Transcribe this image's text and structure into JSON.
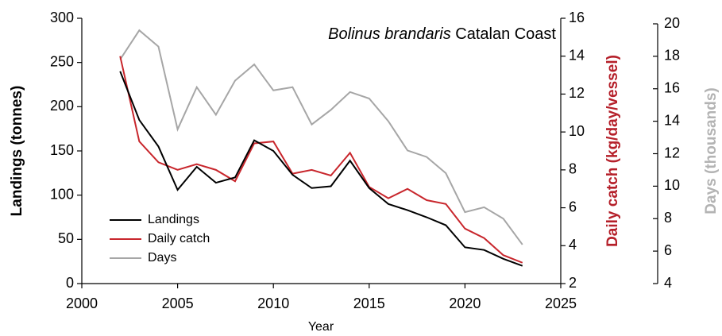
{
  "chart_data": {
    "type": "line",
    "title": {
      "species": "Bolinus brandaris",
      "region": "Catalan Coast"
    },
    "x_label": "Year",
    "y_label": "Landings (tonnes)",
    "y2_label": "Daily catch (kg/day/vessel)",
    "y3_label": "Days (thousands)",
    "x": [
      2002,
      2003,
      2004,
      2005,
      2006,
      2007,
      2008,
      2009,
      2010,
      2011,
      2012,
      2013,
      2014,
      2015,
      2016,
      2017,
      2018,
      2019,
      2020,
      2021,
      2022,
      2023
    ],
    "xlim": [
      2000,
      2025
    ],
    "xticks": [
      2000,
      2005,
      2010,
      2015,
      2020,
      2025
    ],
    "ylim": [
      0,
      300
    ],
    "yticks": [
      0,
      50,
      100,
      150,
      200,
      250,
      300
    ],
    "y2lim": [
      2,
      16
    ],
    "y2ticks": [
      2,
      4,
      6,
      8,
      10,
      12,
      14,
      16
    ],
    "y3lim": [
      4,
      20
    ],
    "y3ticks": [
      4,
      6,
      8,
      10,
      12,
      14,
      16,
      18,
      20
    ],
    "legend": "lower left",
    "series": [
      {
        "name": "Landings",
        "color": "#000000",
        "axis": "y",
        "values": [
          240,
          185,
          155,
          106,
          132,
          114,
          120,
          162,
          150,
          123,
          108,
          110,
          139,
          108,
          90,
          83,
          75,
          66,
          41,
          38,
          28,
          20
        ]
      },
      {
        "name": "Daily catch",
        "color": "#c8262c",
        "axis": "y2",
        "values": [
          14.0,
          9.5,
          8.4,
          8.0,
          8.3,
          8.0,
          7.4,
          9.4,
          9.5,
          7.8,
          8.0,
          7.7,
          8.9,
          7.1,
          6.5,
          7.0,
          6.4,
          6.2,
          4.9,
          4.4,
          3.5,
          3.1
        ]
      },
      {
        "name": "Days",
        "color": "#a6a6a6",
        "axis": "y3",
        "values": [
          17.8,
          19.6,
          18.6,
          13.5,
          16.1,
          14.4,
          16.5,
          17.5,
          15.9,
          16.1,
          13.8,
          14.7,
          15.8,
          15.4,
          14.0,
          12.2,
          11.8,
          10.8,
          8.4,
          8.7,
          8.0,
          6.4
        ]
      }
    ]
  }
}
